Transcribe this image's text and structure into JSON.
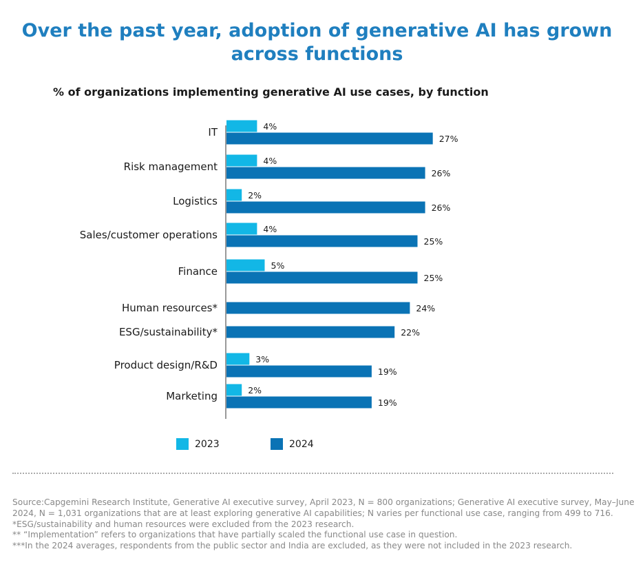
{
  "title_lines": [
    "Over the past year, adoption of generative AI has grown",
    "across functions"
  ],
  "colors": {
    "title": "#1f7fbf",
    "series_2023": "#12b7e6",
    "series_2024": "#0a73b5"
  },
  "chart_data": {
    "type": "bar",
    "orientation": "horizontal",
    "title": "% of organizations implementing generative AI use cases, by function",
    "categories": [
      "IT",
      "Risk management",
      "Logistics",
      "Sales/customer operations",
      "Finance",
      "Human resources*",
      "ESG/sustainability*",
      "Product design/R&D",
      "Marketing"
    ],
    "series": [
      {
        "name": "2023",
        "values": [
          4,
          4,
          2,
          4,
          5,
          null,
          null,
          3,
          2
        ],
        "labels": [
          "4%",
          "4%",
          "2%",
          "4%",
          "5%",
          "",
          "",
          "3%",
          "2%"
        ]
      },
      {
        "name": "2024",
        "values": [
          27,
          26,
          26,
          25,
          25,
          24,
          22,
          19,
          19
        ],
        "labels": [
          "27%",
          "26%",
          "26%",
          "25%",
          "25%",
          "24%",
          "22%",
          "19%",
          "19%"
        ]
      }
    ],
    "unit": "%",
    "legend_position": "bottom",
    "grid": false
  },
  "legend": [
    {
      "label": "2023",
      "color": "#12b7e6"
    },
    {
      "label": "2024",
      "color": "#0a73b5"
    }
  ],
  "footnotes": [
    "Source:Capgemini Research Institute, Generative AI executive survey, April 2023, N = 800 organizations; Generative AI executive survey, May–June",
    "2024, N = 1,031 organizations that are at least exploring generative AI capabilities; N varies per functional use case, ranging from 499 to 716.",
    "*ESG/sustainability and human resources were excluded from the 2023 research.",
    "** “Implementation” refers to organizations that have partially scaled the functional use case in question.",
    "***In the 2024 averages, respondents from the public sector and India are excluded, as they were not included in the 2023 research."
  ]
}
